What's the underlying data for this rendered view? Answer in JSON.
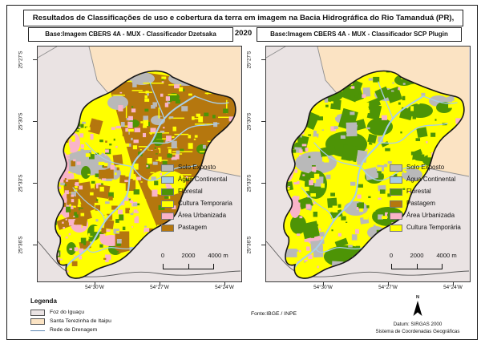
{
  "title": "Resultados de Classificações de uso e cobertura da terra em imagem na Bacia Hidrográfica do Rio Tamanduá (PR), 2020",
  "panels": [
    {
      "subtitle": "Base:Imagem CBERS 4A - MUX -  Classificador Dzetsaka",
      "legend_items": [
        {
          "label": "Solo Exposto",
          "color": "#b9b9b9"
        },
        {
          "label": "Água Continental",
          "color": "#a6cbe4"
        },
        {
          "label": "Florestal",
          "color": "#4d9406"
        },
        {
          "label": "Cultura Temporaria",
          "color": "#ffff00"
        },
        {
          "label": "Área Urbanizada",
          "color": "#f9b4c9"
        },
        {
          "label": "Pastagem",
          "color": "#b5770e"
        }
      ]
    },
    {
      "subtitle": "Base:Imagem CBERS 4A - MUX -  Classificador SCP Plugin",
      "legend_items": [
        {
          "label": "Solo Exposto",
          "color": "#b9b9b9"
        },
        {
          "label": "Água Continental",
          "color": "#a6cbe4"
        },
        {
          "label": "Florestal",
          "color": "#4d9406"
        },
        {
          "label": "Pastagem",
          "color": "#b5770e"
        },
        {
          "label": "Área Urbanizada",
          "color": "#f9b4c9"
        },
        {
          "label": "Cultura Temporária",
          "color": "#ffff00"
        }
      ]
    }
  ],
  "axes": {
    "lat": [
      "25°27'S",
      "25°30'S",
      "25°33'S",
      "25°36'S"
    ],
    "lon": [
      "54°30'W",
      "54°27'W",
      "54°24'W"
    ]
  },
  "scalebar": {
    "labels": [
      "0",
      "2000",
      "4000 m"
    ]
  },
  "map_legend": {
    "title": "Legenda",
    "items": [
      {
        "label": "Foz do Iguaçu",
        "color": "#eae3e3"
      },
      {
        "label": "Santa Terezinha de Itaipu",
        "color": "#fbe3c3"
      },
      {
        "label": "Rede de Drenagem",
        "color": "#5c87b2"
      }
    ]
  },
  "source": "Fonte:IBGE  /  INPE",
  "north": {
    "label": "N"
  },
  "datum": {
    "line1": "Datum: SIRGAS 2000",
    "line2": "Sistema de Coordenadas Geográficas"
  }
}
